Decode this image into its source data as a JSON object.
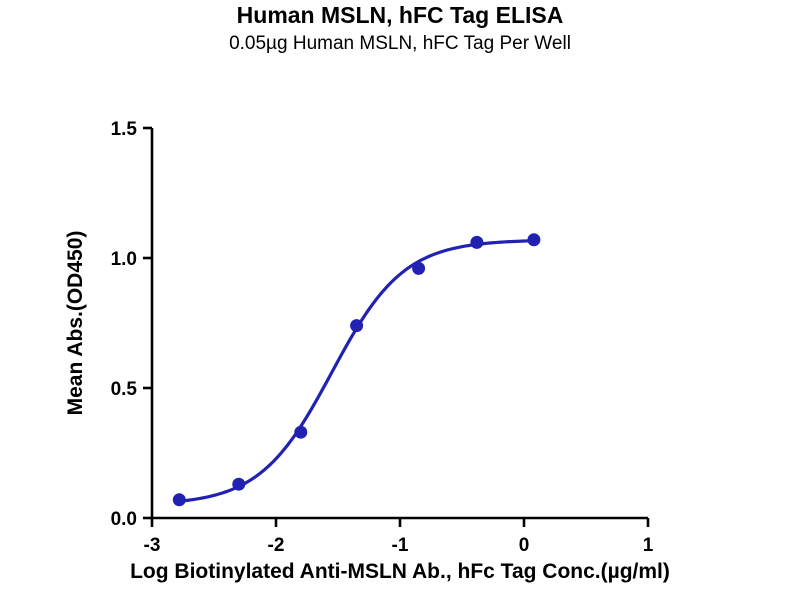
{
  "chart_data": {
    "type": "scatter",
    "title": "Human MSLN, hFC Tag ELISA",
    "subtitle": "0.05µg Human MSLN, hFC Tag Per Well",
    "xlabel": "Log Biotinylated Anti-MSLN Ab., hFc Tag Conc.(µg/ml)",
    "ylabel": "Mean Abs.(OD450)",
    "xlim": [
      -3,
      1
    ],
    "ylim": [
      0,
      1.5
    ],
    "xticks": [
      -3,
      -2,
      -1,
      0,
      1
    ],
    "xtick_labels": [
      "-3",
      "-2",
      "-1",
      "0",
      "1"
    ],
    "yticks": [
      0,
      0.5,
      1.0,
      1.5
    ],
    "ytick_labels": [
      "0.0",
      "0.5",
      "1.0",
      "1.5"
    ],
    "grid": false,
    "legend": null,
    "axis_color": "#000000",
    "marker_color": "#2222b2",
    "line_color": "#2222b2",
    "points": {
      "x": [
        -2.78,
        -2.3,
        -1.8,
        -1.35,
        -0.85,
        -0.38,
        0.08
      ],
      "y": [
        0.07,
        0.13,
        0.33,
        0.74,
        0.96,
        1.06,
        1.07
      ]
    },
    "fit_curve": {
      "model": "4PL-sigmoid",
      "bottom": 0.05,
      "top": 1.07,
      "logEC50": -1.55,
      "hillslope": 1.5,
      "x_start": -2.78,
      "x_end": 0.08
    }
  }
}
